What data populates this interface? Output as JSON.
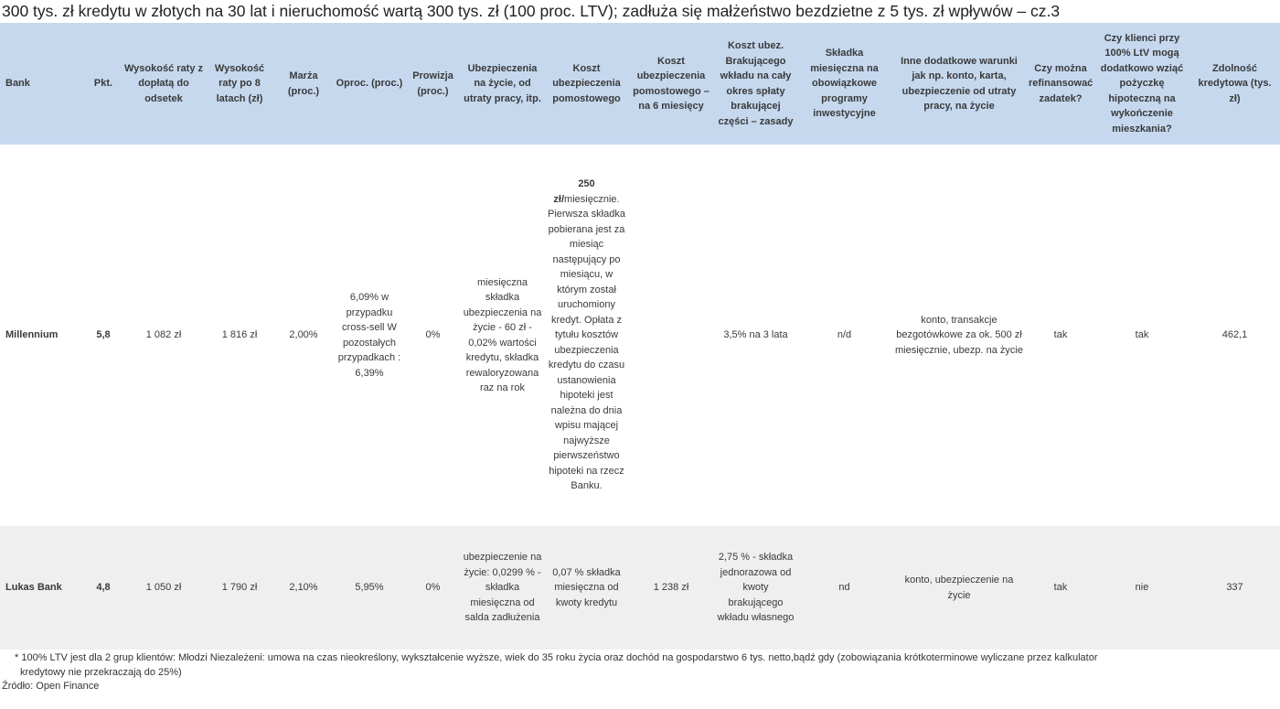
{
  "title": "300 tys. zł kredytu w złotych na 30 lat i nieruchomość wartą 300 tys. zł (100 proc. LTV); zadłuża się małżeństwo bezdzietne z 5 tys. zł wpływów – cz.3",
  "columns": [
    "Bank",
    "Pkt.",
    "Wysokość raty z dopłatą do odsetek",
    "Wysokość raty po 8 latach (zł)",
    "Marża (proc.)",
    "Oproc. (proc.)",
    "Prowizja (proc.)",
    "Ubezpieczenia na życie, od utraty pracy, itp.",
    "Koszt ubezpieczenia pomostowego",
    "Koszt ubezpieczenia pomostowego – na 6 miesięcy",
    "Koszt ubez. Brakującego wkładu na cały okres spłaty brakującej części – zasady",
    "Składka miesięczna na obowiązkowe programy inwestycyjne",
    "Inne dodatkowe warunki jak np. konto, karta, ubezpieczenie od utraty pracy, na życie",
    "Czy można refinansować zadatek?",
    "Czy klienci przy 100% LtV mogą dodatkowo wziąć pożyczkę hipoteczną na wykończenie mieszkania?",
    "Zdolność kredytowa (tys. zł)"
  ],
  "rows": [
    {
      "bank": "Millennium",
      "pkt": "5,8",
      "rata_doplata": "1 082 zł",
      "rata_8lat": "1 816 zł",
      "marza": "2,00%",
      "oproc": "6,09% w przypadku cross-sell W pozostałych przypadkach : 6,39%",
      "prowizja": "0%",
      "ubezp_zycie": "miesięczna składka ubezpieczenia na życie - 60 zł - 0,02% wartości kredytu, składka rewaloryzowana raz na rok",
      "ubezp_pomost_bold": "250 zł/",
      "ubezp_pomost_rest": "miesięcznie. Pierwsza składka pobierana jest za miesiąc następujący po miesiącu, w którym został uruchomiony kredyt. Opłata z tytułu kosztów ubezpieczenia kredytu do czasu ustanowienia hipoteki jest należna do dnia wpisu mającej najwyższe pierwszeństwo hipoteki na rzecz Banku.",
      "ubezp_pomost_6m": "",
      "brak_wklad": "3,5% na 3 lata",
      "skladka_inwest": "n/d",
      "inne": "konto, transakcje bezgotówkowe za ok. 500 zł miesięcznie, ubezp. na życie",
      "refinans": "tak",
      "pozyczka": "tak",
      "zdolnosc": "462,1"
    },
    {
      "bank": "Lukas Bank",
      "pkt": "4,8",
      "rata_doplata": "1 050 zł",
      "rata_8lat": "1 790 zł",
      "marza": "2,10%",
      "oproc": "5,95%",
      "prowizja": "0%",
      "ubezp_zycie": "ubezpieczenie na życie: 0,0299 % - składka miesięczna od salda zadłużenia",
      "ubezp_pomost": "0,07 % składka miesięczna od kwoty kredytu",
      "ubezp_pomost_6m": "1 238 zł",
      "brak_wklad": "2,75 % - składka jednorazowa od kwoty brakującego wkładu własnego",
      "skladka_inwest": "nd",
      "inne": "konto, ubezpieczenie na życie",
      "refinans": "tak",
      "pozyczka": "nie",
      "zdolnosc": "337"
    }
  ],
  "footnote_1": "* 100% LTV jest dla 2 grup klientów: Młodzi Niezależeni: umowa na czas nieokreślony, wykształcenie wyższe, wiek do 35 roku życia oraz dochód na gospodarstwo 6 tys. netto,bądź gdy (zobowiązania krótkoterminowe wyliczane przez kalkulator",
  "footnote_2": "kredytowy nie przekraczają do 25%)",
  "source": "Źródło: Open Finance"
}
